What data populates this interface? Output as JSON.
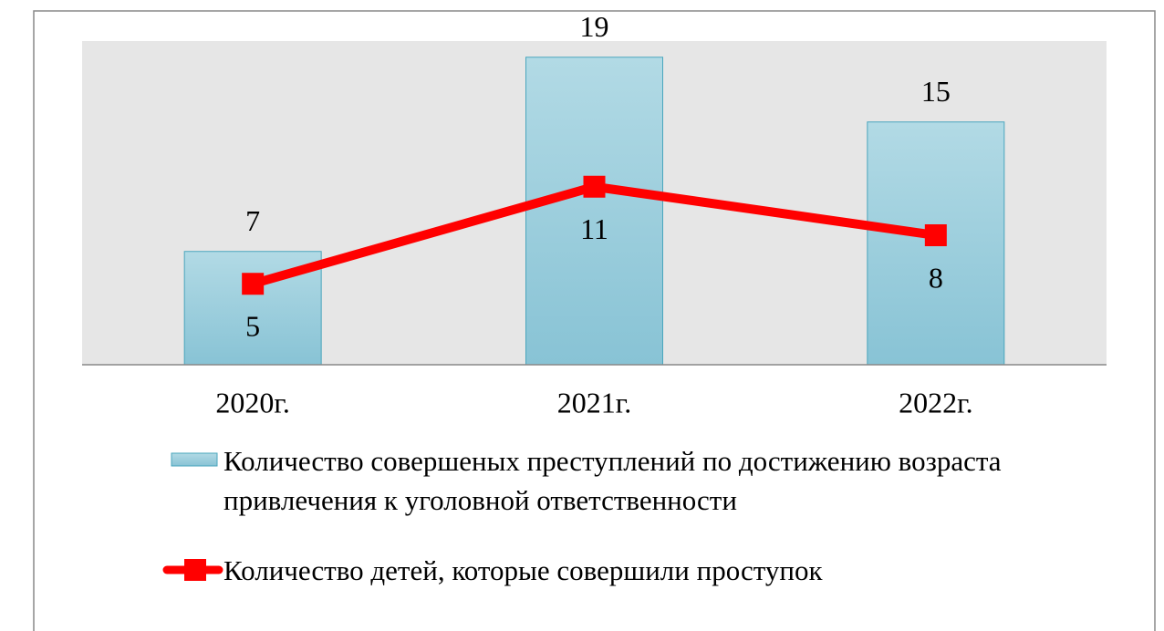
{
  "chart_data": {
    "type": "bar_line",
    "categories": [
      "2020г.",
      "2021г.",
      "2022г."
    ],
    "series": [
      {
        "name": "Количество совершеных преступлений по достижению возраста привлечения к уголовной ответственности",
        "type": "bar",
        "color": "#9ccfdd",
        "values": [
          7,
          19,
          15
        ]
      },
      {
        "name": "Количество детей, которые совершили проступок",
        "type": "line",
        "color": "#ff0000",
        "values": [
          5,
          11,
          8
        ]
      }
    ],
    "ylim": [
      0,
      20
    ],
    "grid": false,
    "legend": "bottom"
  }
}
